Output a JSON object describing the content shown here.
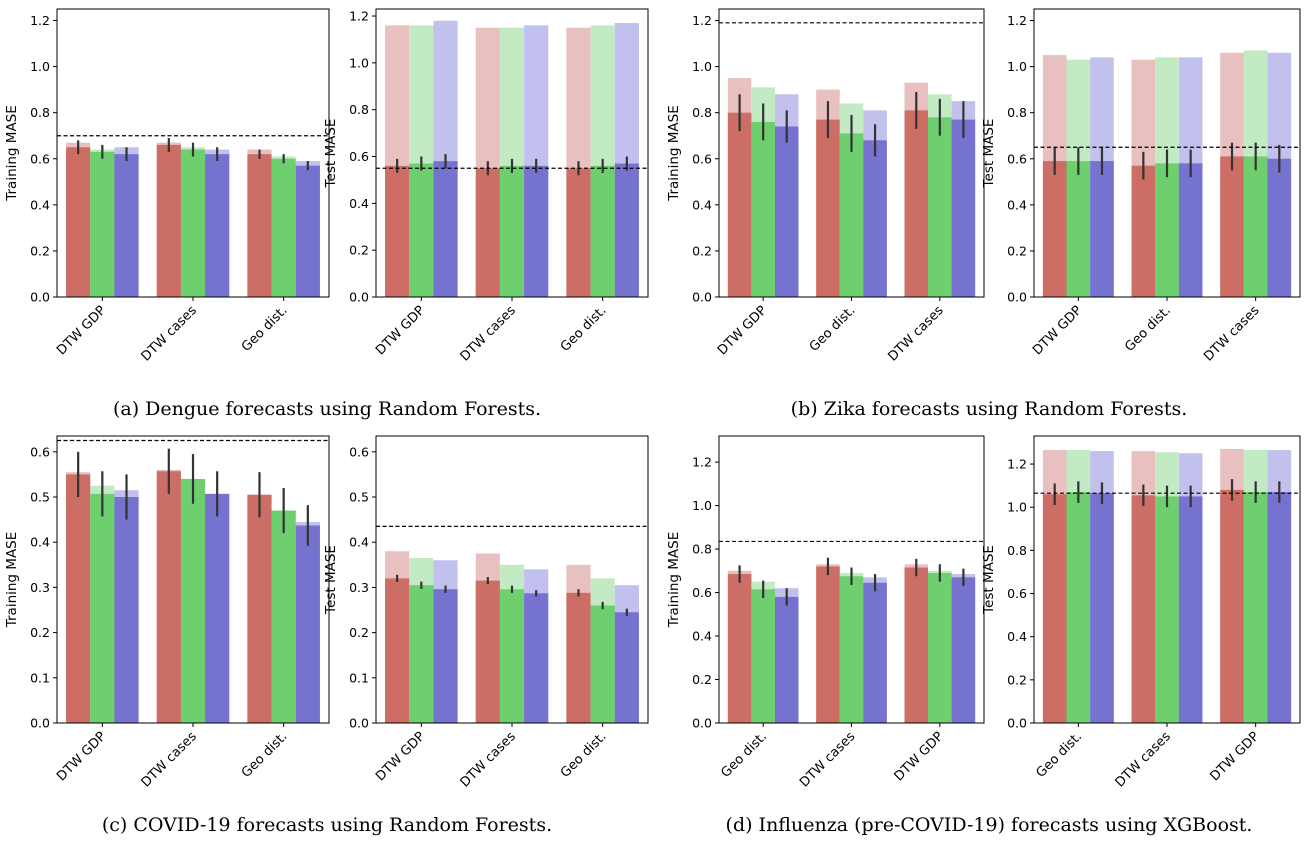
{
  "colors": {
    "red_solid": "#cd6e66",
    "red_light": "#e8c0bf",
    "green_solid": "#6ecf6e",
    "green_light": "#c3ebc3",
    "blue_solid": "#7672cf",
    "blue_light": "#c2c0ed",
    "error_bar": "#333333",
    "baseline": "#000000"
  },
  "captions": {
    "a": "(a) Dengue forecasts using Random Forests.",
    "b": "(b) Zika forecasts using Random Forests.",
    "c": "(c) COVID-19 forecasts using Random Forests.",
    "d": "(d) Influenza (pre-COVID-19) forecasts using XGBoost."
  },
  "chart_data": [
    {
      "id": "a-train",
      "type": "bar",
      "ylabel": "Training MASE",
      "ylim": [
        0,
        1.25
      ],
      "yticks": [
        0.0,
        0.2,
        0.4,
        0.6,
        0.8,
        1.0,
        1.2
      ],
      "categories": [
        "DTW GDP",
        "DTW cases",
        "Geo dist."
      ],
      "baseline": 0.7,
      "series": [
        {
          "light": [
            0.67,
            0.67,
            0.64
          ],
          "solid": [
            0.65,
            0.66,
            0.62
          ],
          "err": [
            0.03,
            0.03,
            0.02
          ]
        },
        {
          "light": [
            0.64,
            0.65,
            0.61
          ],
          "solid": [
            0.63,
            0.64,
            0.6
          ],
          "err": [
            0.03,
            0.03,
            0.02
          ]
        },
        {
          "light": [
            0.65,
            0.64,
            0.59
          ],
          "solid": [
            0.62,
            0.62,
            0.57
          ],
          "err": [
            0.03,
            0.03,
            0.02
          ]
        }
      ]
    },
    {
      "id": "a-test",
      "type": "bar",
      "ylabel": "Test MASE",
      "ylim": [
        0,
        1.23
      ],
      "yticks": [
        0.0,
        0.2,
        0.4,
        0.6,
        0.8,
        1.0,
        1.2
      ],
      "categories": [
        "DTW GDP",
        "DTW cases",
        "Geo dist."
      ],
      "baseline": 0.55,
      "series": [
        {
          "light": [
            1.16,
            1.15,
            1.15
          ],
          "solid": [
            0.56,
            0.55,
            0.55
          ],
          "err": [
            0.03,
            0.03,
            0.03
          ]
        },
        {
          "light": [
            1.16,
            1.15,
            1.16
          ],
          "solid": [
            0.57,
            0.56,
            0.56
          ],
          "err": [
            0.03,
            0.03,
            0.03
          ]
        },
        {
          "light": [
            1.18,
            1.16,
            1.17
          ],
          "solid": [
            0.58,
            0.56,
            0.57
          ],
          "err": [
            0.03,
            0.03,
            0.03
          ]
        }
      ]
    },
    {
      "id": "b-train",
      "type": "bar",
      "ylabel": "Training MASE",
      "ylim": [
        0,
        1.25
      ],
      "yticks": [
        0.0,
        0.2,
        0.4,
        0.6,
        0.8,
        1.0,
        1.2
      ],
      "categories": [
        "DTW GDP",
        "Geo dist.",
        "DTW cases"
      ],
      "baseline": 1.19,
      "series": [
        {
          "light": [
            0.95,
            0.9,
            0.93
          ],
          "solid": [
            0.8,
            0.77,
            0.81
          ],
          "err": [
            0.08,
            0.08,
            0.08
          ]
        },
        {
          "light": [
            0.91,
            0.84,
            0.88
          ],
          "solid": [
            0.76,
            0.71,
            0.78
          ],
          "err": [
            0.08,
            0.08,
            0.08
          ]
        },
        {
          "light": [
            0.88,
            0.81,
            0.85
          ],
          "solid": [
            0.74,
            0.68,
            0.77
          ],
          "err": [
            0.07,
            0.07,
            0.08
          ]
        }
      ]
    },
    {
      "id": "b-test",
      "type": "bar",
      "ylabel": "Test MASE",
      "ylim": [
        0,
        1.25
      ],
      "yticks": [
        0.0,
        0.2,
        0.4,
        0.6,
        0.8,
        1.0,
        1.2
      ],
      "categories": [
        "DTW GDP",
        "Geo dist.",
        "DTW cases"
      ],
      "baseline": 0.65,
      "series": [
        {
          "light": [
            1.05,
            1.03,
            1.06
          ],
          "solid": [
            0.59,
            0.57,
            0.61
          ],
          "err": [
            0.06,
            0.06,
            0.06
          ]
        },
        {
          "light": [
            1.03,
            1.04,
            1.07
          ],
          "solid": [
            0.59,
            0.58,
            0.61
          ],
          "err": [
            0.06,
            0.06,
            0.06
          ]
        },
        {
          "light": [
            1.04,
            1.04,
            1.06
          ],
          "solid": [
            0.59,
            0.58,
            0.6
          ],
          "err": [
            0.06,
            0.06,
            0.06
          ]
        }
      ]
    },
    {
      "id": "c-train",
      "type": "bar",
      "ylabel": "Training MASE",
      "ylim": [
        0,
        0.635
      ],
      "yticks": [
        0.0,
        0.1,
        0.2,
        0.3,
        0.4,
        0.5,
        0.6
      ],
      "categories": [
        "DTW GDP",
        "DTW cases",
        "Geo dist."
      ],
      "baseline": 0.625,
      "series": [
        {
          "light": [
            0.555,
            0.56,
            0.505
          ],
          "solid": [
            0.55,
            0.557,
            0.505
          ],
          "err": [
            0.05,
            0.05,
            0.05
          ]
        },
        {
          "light": [
            0.525,
            0.54,
            0.47
          ],
          "solid": [
            0.507,
            0.54,
            0.47
          ],
          "err": [
            0.05,
            0.055,
            0.05
          ]
        },
        {
          "light": [
            0.515,
            0.505,
            0.445
          ],
          "solid": [
            0.5,
            0.507,
            0.437
          ],
          "err": [
            0.05,
            0.05,
            0.045
          ]
        }
      ]
    },
    {
      "id": "c-test",
      "type": "bar",
      "ylabel": "Test MASE",
      "ylim": [
        0,
        0.635
      ],
      "yticks": [
        0.0,
        0.1,
        0.2,
        0.3,
        0.4,
        0.5,
        0.6
      ],
      "categories": [
        "DTW GDP",
        "DTW cases",
        "Geo dist."
      ],
      "baseline": 0.435,
      "series": [
        {
          "light": [
            0.38,
            0.375,
            0.35
          ],
          "solid": [
            0.32,
            0.315,
            0.288
          ],
          "err": [
            0.008,
            0.008,
            0.008
          ]
        },
        {
          "light": [
            0.365,
            0.35,
            0.32
          ],
          "solid": [
            0.305,
            0.296,
            0.26
          ],
          "err": [
            0.008,
            0.008,
            0.008
          ]
        },
        {
          "light": [
            0.36,
            0.34,
            0.305
          ],
          "solid": [
            0.296,
            0.287,
            0.245
          ],
          "err": [
            0.008,
            0.007,
            0.008
          ]
        }
      ]
    },
    {
      "id": "d-train",
      "type": "bar",
      "ylabel": "Training MASE",
      "ylim": [
        0,
        1.32
      ],
      "yticks": [
        0.0,
        0.2,
        0.4,
        0.6,
        0.8,
        1.0,
        1.2
      ],
      "categories": [
        "Geo dist.",
        "DTW cases",
        "DTW GDP"
      ],
      "baseline": 0.835,
      "series": [
        {
          "light": [
            0.7,
            0.73,
            0.73
          ],
          "solid": [
            0.685,
            0.72,
            0.715
          ],
          "err": [
            0.04,
            0.04,
            0.04
          ]
        },
        {
          "light": [
            0.65,
            0.69,
            0.7
          ],
          "solid": [
            0.615,
            0.675,
            0.69
          ],
          "err": [
            0.04,
            0.04,
            0.04
          ]
        },
        {
          "light": [
            0.62,
            0.67,
            0.685
          ],
          "solid": [
            0.58,
            0.645,
            0.67
          ],
          "err": [
            0.04,
            0.04,
            0.04
          ]
        }
      ]
    },
    {
      "id": "d-test",
      "type": "bar",
      "ylabel": "Test MASE",
      "ylim": [
        0,
        1.33
      ],
      "yticks": [
        0.0,
        0.2,
        0.4,
        0.6,
        0.8,
        1.0,
        1.2
      ],
      "categories": [
        "Geo dist.",
        "DTW cases",
        "DTW GDP"
      ],
      "baseline": 1.065,
      "series": [
        {
          "light": [
            1.265,
            1.26,
            1.27
          ],
          "solid": [
            1.06,
            1.055,
            1.08
          ],
          "err": [
            0.05,
            0.05,
            0.05
          ]
        },
        {
          "light": [
            1.265,
            1.255,
            1.265
          ],
          "solid": [
            1.07,
            1.05,
            1.07
          ],
          "err": [
            0.05,
            0.05,
            0.05
          ]
        },
        {
          "light": [
            1.26,
            1.25,
            1.265
          ],
          "solid": [
            1.065,
            1.05,
            1.07
          ],
          "err": [
            0.05,
            0.05,
            0.05
          ]
        }
      ]
    }
  ]
}
